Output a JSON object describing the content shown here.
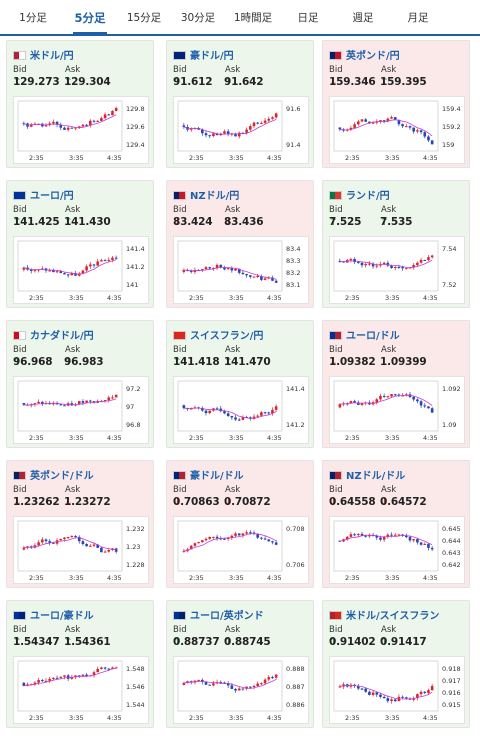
{
  "tabs": [
    {
      "label": "1分足",
      "active": false
    },
    {
      "label": "5分足",
      "active": true
    },
    {
      "label": "15分足",
      "active": false
    },
    {
      "label": "30分足",
      "active": false
    },
    {
      "label": "1時間足",
      "active": false
    },
    {
      "label": "日足",
      "active": false
    },
    {
      "label": "週足",
      "active": false
    },
    {
      "label": "月足",
      "active": false
    }
  ],
  "labels": {
    "bid": "Bid",
    "ask": "Ask"
  },
  "colors": {
    "up_bg": "#ecf6ea",
    "down_bg": "#fbe9ea",
    "pair_blue": "#1f5fa8",
    "candle_up": "#d9262b",
    "candle_down": "#2346b3",
    "ma": "#c83bd6",
    "arrow_up": "#2c9a38",
    "arrow_down": "#d33333"
  },
  "cards": [
    {
      "pair": "米ドル/円",
      "flag": [
        "#b22234",
        "#ffffff"
      ],
      "trend": "up",
      "bid": "129.273",
      "ask": "129.304",
      "bid_dir": "up",
      "ask_dir": "up",
      "y_ticks": [
        "129.8",
        "129.6",
        "129.4"
      ],
      "x_ticks": [
        "2:35",
        "3:35",
        "4:35"
      ]
    },
    {
      "pair": "豪ドル/円",
      "flag": [
        "#00247d",
        "#00247d"
      ],
      "trend": "up",
      "bid": "91.612",
      "ask": "91.642",
      "bid_dir": "up",
      "ask_dir": "up",
      "y_ticks": [
        "91.6",
        "91.4"
      ],
      "x_ticks": [
        "2:35",
        "3:35",
        "4:35"
      ]
    },
    {
      "pair": "英ポンド/円",
      "flag": [
        "#012169",
        "#c8102e"
      ],
      "trend": "down",
      "bid": "159.346",
      "ask": "159.395",
      "bid_dir": "down",
      "ask_dir": "up",
      "y_ticks": [
        "159.4",
        "159.2",
        "159"
      ],
      "x_ticks": [
        "2:35",
        "3:35",
        "4:35"
      ]
    },
    {
      "pair": "ユーロ/円",
      "flag": [
        "#003399",
        "#003399"
      ],
      "trend": "up",
      "bid": "141.425",
      "ask": "141.430",
      "bid_dir": "up",
      "ask_dir": "up",
      "y_ticks": [
        "141.4",
        "141.2",
        "141"
      ],
      "x_ticks": [
        "2:35",
        "3:35",
        "4:35"
      ]
    },
    {
      "pair": "NZドル/円",
      "flag": [
        "#012169",
        "#cc142b"
      ],
      "trend": "down",
      "bid": "83.424",
      "ask": "83.436",
      "bid_dir": "down",
      "ask_dir": "down",
      "y_ticks": [
        "83.4",
        "83.3",
        "83.2",
        "83.1"
      ],
      "x_ticks": [
        "2:35",
        "3:35",
        "4:35"
      ]
    },
    {
      "pair": "ランド/円",
      "flag": [
        "#007a4d",
        "#de3831"
      ],
      "trend": "up",
      "bid": "7.525",
      "ask": "7.535",
      "bid_dir": "up",
      "ask_dir": "up",
      "y_ticks": [
        "7.54",
        "7.52"
      ],
      "x_ticks": [
        "2:35",
        "3:35",
        "4:35"
      ]
    },
    {
      "pair": "カナダドル/円",
      "flag": [
        "#d80621",
        "#ffffff"
      ],
      "trend": "up",
      "bid": "96.968",
      "ask": "96.983",
      "bid_dir": "up",
      "ask_dir": "up",
      "y_ticks": [
        "97.2",
        "97",
        "96.8"
      ],
      "x_ticks": [
        "2:35",
        "3:35",
        "4:35"
      ]
    },
    {
      "pair": "スイスフラン/円",
      "flag": [
        "#da291c",
        "#da291c"
      ],
      "trend": "up",
      "bid": "141.418",
      "ask": "141.470",
      "bid_dir": "up",
      "ask_dir": "up",
      "y_ticks": [
        "141.4",
        "141.2"
      ],
      "x_ticks": [
        "2:35",
        "3:35",
        "4:35"
      ]
    },
    {
      "pair": "ユーロ/ドル",
      "flag": [
        "#003399",
        "#b22234"
      ],
      "trend": "down",
      "bid": "1.09382",
      "ask": "1.09399",
      "bid_dir": "down",
      "ask_dir": "",
      "y_ticks": [
        "1.092",
        "1.09"
      ],
      "x_ticks": [
        "2:35",
        "3:35",
        "4:35"
      ]
    },
    {
      "pair": "英ポンド/ドル",
      "flag": [
        "#012169",
        "#b22234"
      ],
      "trend": "down",
      "bid": "1.23262",
      "ask": "1.23272",
      "bid_dir": "down",
      "ask_dir": "down",
      "y_ticks": [
        "1.232",
        "1.23",
        "1.228"
      ],
      "x_ticks": [
        "2:35",
        "3:35",
        "4:35"
      ]
    },
    {
      "pair": "豪ドル/ドル",
      "flag": [
        "#00247d",
        "#b22234"
      ],
      "trend": "down",
      "bid": "0.70863",
      "ask": "0.70872",
      "bid_dir": "down",
      "ask_dir": "down",
      "y_ticks": [
        "0.708",
        "0.706"
      ],
      "x_ticks": [
        "2:35",
        "3:35",
        "4:35"
      ]
    },
    {
      "pair": "NZドル/ドル",
      "flag": [
        "#012169",
        "#b22234"
      ],
      "trend": "down",
      "bid": "0.64558",
      "ask": "0.64572",
      "bid_dir": "down",
      "ask_dir": "down",
      "y_ticks": [
        "0.645",
        "0.644",
        "0.643",
        "0.642"
      ],
      "x_ticks": [
        "2:35",
        "3:35",
        "4:35"
      ]
    },
    {
      "pair": "ユーロ/豪ドル",
      "flag": [
        "#003399",
        "#00247d"
      ],
      "trend": "up",
      "bid": "1.54347",
      "ask": "1.54361",
      "bid_dir": "up",
      "ask_dir": "up",
      "y_ticks": [
        "1.548",
        "1.546",
        "1.544"
      ],
      "x_ticks": [
        "2:35",
        "3:35",
        "4:35"
      ]
    },
    {
      "pair": "ユーロ/英ポンド",
      "flag": [
        "#003399",
        "#012169"
      ],
      "trend": "up",
      "bid": "0.88737",
      "ask": "0.88745",
      "bid_dir": "up",
      "ask_dir": "up",
      "y_ticks": [
        "0.888",
        "0.887",
        "0.886"
      ],
      "x_ticks": [
        "2:35",
        "3:35",
        "4:35"
      ]
    },
    {
      "pair": "米ドル/スイスフラン",
      "flag": [
        "#b22234",
        "#da291c"
      ],
      "trend": "up",
      "bid": "0.91402",
      "ask": "0.91417",
      "bid_dir": "up",
      "ask_dir": "up",
      "y_ticks": [
        "0.918",
        "0.917",
        "0.916",
        "0.915"
      ],
      "x_ticks": [
        "2:35",
        "3:35",
        "4:35"
      ]
    }
  ]
}
